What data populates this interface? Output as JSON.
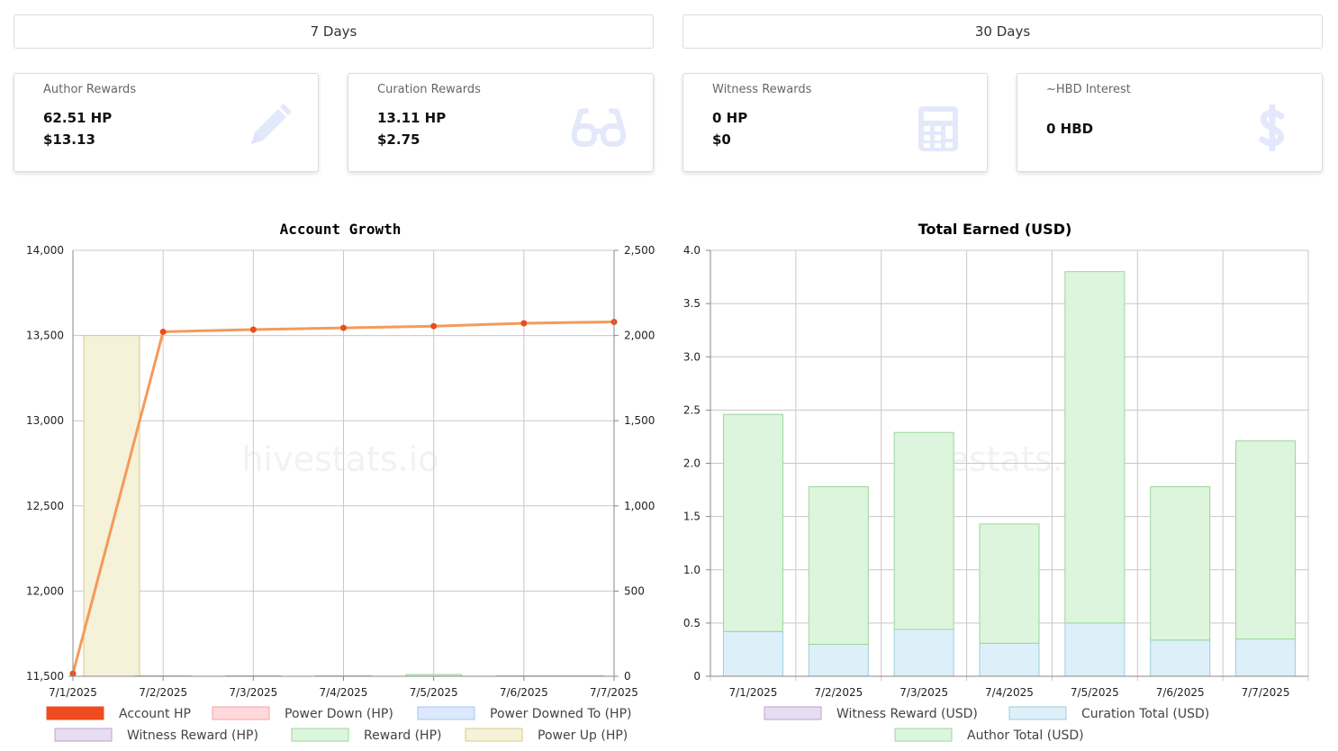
{
  "tabs": [
    "7 Days",
    "30 Days"
  ],
  "cards": {
    "author": {
      "title": "Author Rewards",
      "hp": "62.51 HP",
      "usd": "$13.13",
      "icon": "pencil-icon"
    },
    "curation": {
      "title": "Curation Rewards",
      "hp": "13.11 HP",
      "usd": "$2.75",
      "icon": "glasses-icon"
    },
    "witness": {
      "title": "Witness Rewards",
      "hp": "0 HP",
      "usd": "$0",
      "icon": "calculator-icon"
    },
    "interest": {
      "title": "~HBD Interest",
      "value": "0 HBD",
      "icon": "dollar-icon"
    }
  },
  "watermark": "hivestats.io",
  "icon_color": "#e4e8fb",
  "chart_data": [
    {
      "type": "line",
      "title": "Account Growth",
      "categories": [
        "7/1/2025",
        "7/2/2025",
        "7/3/2025",
        "7/4/2025",
        "7/5/2025",
        "7/6/2025",
        "7/7/2025"
      ],
      "ylim_left": [
        11500,
        14000
      ],
      "yticks_left": [
        "11,500",
        "12,000",
        "12,500",
        "13,000",
        "13,500",
        "14,000"
      ],
      "ylim_right": [
        0,
        2500
      ],
      "yticks_right": [
        "0",
        "500",
        "1,000",
        "1,500",
        "2,000",
        "2,500"
      ],
      "grid": true,
      "legend": "bottom",
      "series": [
        {
          "name": "Account HP",
          "axis": "left",
          "kind": "line",
          "color": "#f59a5a",
          "marker": "#ef4b1f",
          "values": [
            11515,
            13522,
            13535,
            13545,
            13555,
            13572,
            13580
          ]
        },
        {
          "name": "Power Down (HP)",
          "axis": "right",
          "kind": "bar",
          "color": "#ffd9dc",
          "border": "#f4a3aa",
          "values": [
            0,
            0,
            0,
            0,
            0,
            0,
            0
          ]
        },
        {
          "name": "Power Downed To (HP)",
          "axis": "right",
          "kind": "bar",
          "color": "#dbe8fd",
          "border": "#a7c5f4",
          "values": [
            0,
            0,
            0,
            0,
            0,
            0,
            0
          ]
        },
        {
          "name": "Witness Reward (HP)",
          "axis": "right",
          "kind": "bar",
          "color": "#e8dcf2",
          "border": "#b9a3d1",
          "values": [
            0,
            0,
            0,
            0,
            0,
            0,
            0
          ]
        },
        {
          "name": "Reward (HP)",
          "axis": "right",
          "kind": "bar",
          "color": "#dcf5dc",
          "border": "#9cd69c",
          "values": [
            4,
            3,
            3,
            3,
            10,
            3,
            3
          ]
        },
        {
          "name": "Power Up (HP)",
          "axis": "right",
          "kind": "bar",
          "color": "#f6f1d9",
          "border": "#d8ca8c",
          "values": [
            2000,
            0,
            0,
            0,
            0,
            0,
            0
          ]
        }
      ],
      "legend_swatches": {
        "Account HP": "#ef4b1f"
      }
    },
    {
      "type": "bar",
      "title": "Total Earned (USD)",
      "categories": [
        "7/1/2025",
        "7/2/2025",
        "7/3/2025",
        "7/4/2025",
        "7/5/2025",
        "7/6/2025",
        "7/7/2025"
      ],
      "ylim": [
        0,
        4
      ],
      "yticks": [
        "0",
        "0.5",
        "1.0",
        "1.5",
        "2.0",
        "2.5",
        "3.0",
        "3.5",
        "4.0"
      ],
      "stacked": true,
      "grid": true,
      "legend": "bottom",
      "series": [
        {
          "name": "Witness Reward (USD)",
          "color": "#e8dcf2",
          "border": "#b9a3d1",
          "values": [
            0,
            0,
            0,
            0,
            0,
            0,
            0
          ]
        },
        {
          "name": "Curation Total (USD)",
          "color": "#ddf0f9",
          "border": "#9ccde0",
          "values": [
            0.42,
            0.3,
            0.44,
            0.31,
            0.5,
            0.34,
            0.35
          ]
        },
        {
          "name": "Author Total (USD)",
          "color": "#dcf5dc",
          "border": "#9cd69c",
          "values": [
            2.04,
            1.48,
            1.85,
            1.12,
            3.3,
            1.44,
            1.86
          ]
        }
      ]
    }
  ]
}
